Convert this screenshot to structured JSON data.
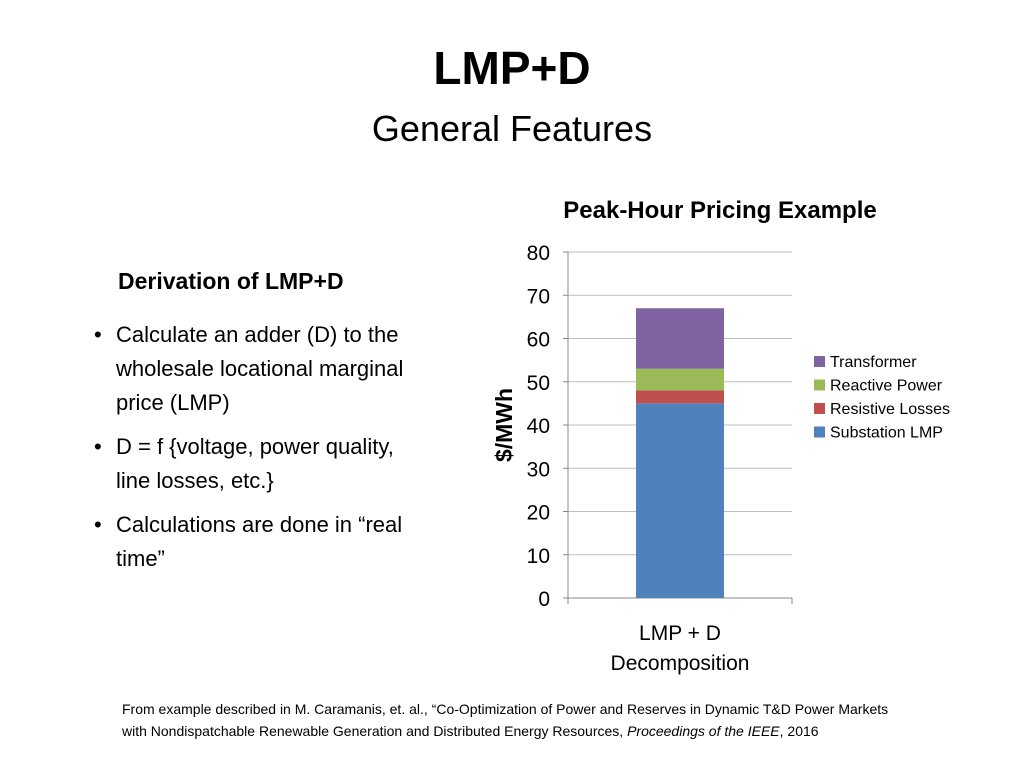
{
  "slide": {
    "title": "LMP+D",
    "subtitle": "General Features"
  },
  "left_panel": {
    "heading": "Derivation of LMP+D",
    "bullets": [
      "Calculate an adder (D) to the wholesale locational marginal price (LMP)",
      "D = f {voltage, power quality, line losses, etc.}",
      "Calculations are done in “real time”"
    ]
  },
  "chart_data": {
    "type": "bar",
    "stacked": true,
    "title": "Peak-Hour Pricing Example",
    "xlabel": "",
    "ylabel": "$/MWh",
    "categories": [
      "LMP + D Decomposition"
    ],
    "category_lines": [
      "LMP + D",
      "Decomposition"
    ],
    "ylim": [
      0,
      80
    ],
    "yticks": [
      0,
      10,
      20,
      30,
      40,
      50,
      60,
      70,
      80
    ],
    "grid": true,
    "legend_position": "right",
    "series": [
      {
        "name": "Substation LMP",
        "values": [
          45
        ],
        "color": "#4F81BD"
      },
      {
        "name": "Resistive Losses",
        "values": [
          3
        ],
        "color": "#C0504D"
      },
      {
        "name": "Reactive Power",
        "values": [
          5
        ],
        "color": "#9BBB59"
      },
      {
        "name": "Transformer",
        "values": [
          14
        ],
        "color": "#8064A2"
      }
    ]
  },
  "footnote": {
    "line1": "From example described in M. Caramanis, et. al., “Co-Optimization of Power and Reserves in Dynamic T&D Power Markets",
    "line2_start": "with Nondispatchable Renewable Generation and Distributed Energy Resources, ",
    "line2_italic": "Proceedings of the IEEE",
    "line2_end": ", 2016"
  }
}
